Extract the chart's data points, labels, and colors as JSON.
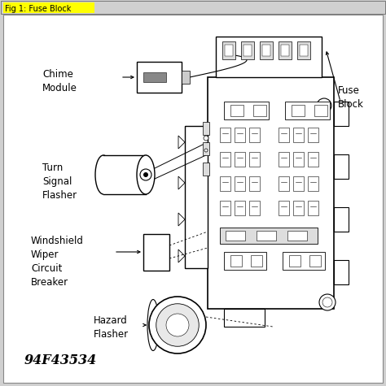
{
  "title": "Fig 1: Fuse Block",
  "title_bg": "#ffff00",
  "outer_bg": "#d0d0d0",
  "inner_bg": "#ffffff",
  "border_line": "#888888",
  "black": "#000000",
  "gray": "#888888",
  "lightgray": "#cccccc",
  "white": "#ffffff",
  "labels": {
    "chime_module": "Chime\nModule",
    "fuse_block": "Fuse\nBlock",
    "turn_signal": "Turn\nSignal\nFlasher",
    "windshield": "Windshield\nWiper\nCircuit\nBreaker",
    "hazard": "Hazard\nFlasher",
    "part_number": "94F43534"
  },
  "figsize": [
    4.74,
    4.75
  ],
  "dpi": 100
}
